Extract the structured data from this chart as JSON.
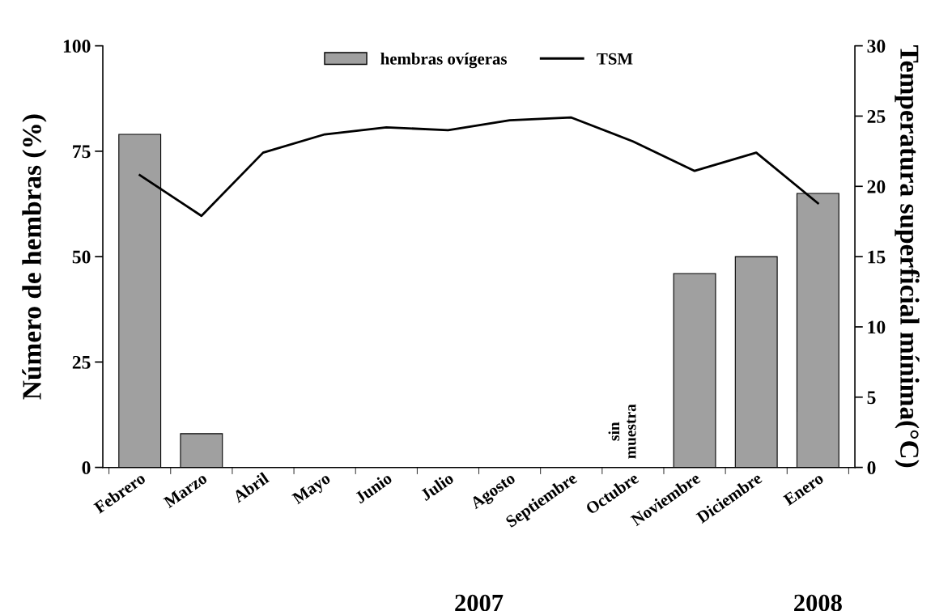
{
  "chart_data": {
    "type": "bar",
    "categories": [
      "Febrero",
      "Marzo",
      "Abril",
      "Mayo",
      "Junio",
      "Julio",
      "Agosto",
      "Septiembre",
      "Octubre",
      "Noviembre",
      "Diciembre",
      "Enero"
    ],
    "ylabel": "Número de hembras (%)",
    "y2label": "Temperatura superficial mínima(°C)",
    "series": [
      {
        "name": "hembras ovígeras",
        "color": "#a0a0a0",
        "values": [
          79,
          8,
          0,
          0,
          0,
          0,
          0,
          0,
          null,
          46,
          50,
          65
        ]
      },
      {
        "name": "TSM",
        "type": "line",
        "axis": "y2",
        "color": "#000000",
        "values": [
          20.8,
          17.9,
          22.4,
          23.7,
          24.2,
          24.0,
          24.7,
          24.9,
          23.2,
          21.1,
          22.4,
          18.8
        ]
      }
    ],
    "ylim": [
      0,
      100
    ],
    "yticks": [
      0,
      25,
      50,
      75,
      100
    ],
    "y2lim": [
      0,
      30
    ],
    "y2ticks": [
      0,
      5,
      10,
      15,
      20,
      25,
      30
    ],
    "grid": false,
    "legend": "top",
    "annotations": [
      "sin\nmuestra",
      "2007",
      "2008"
    ]
  }
}
